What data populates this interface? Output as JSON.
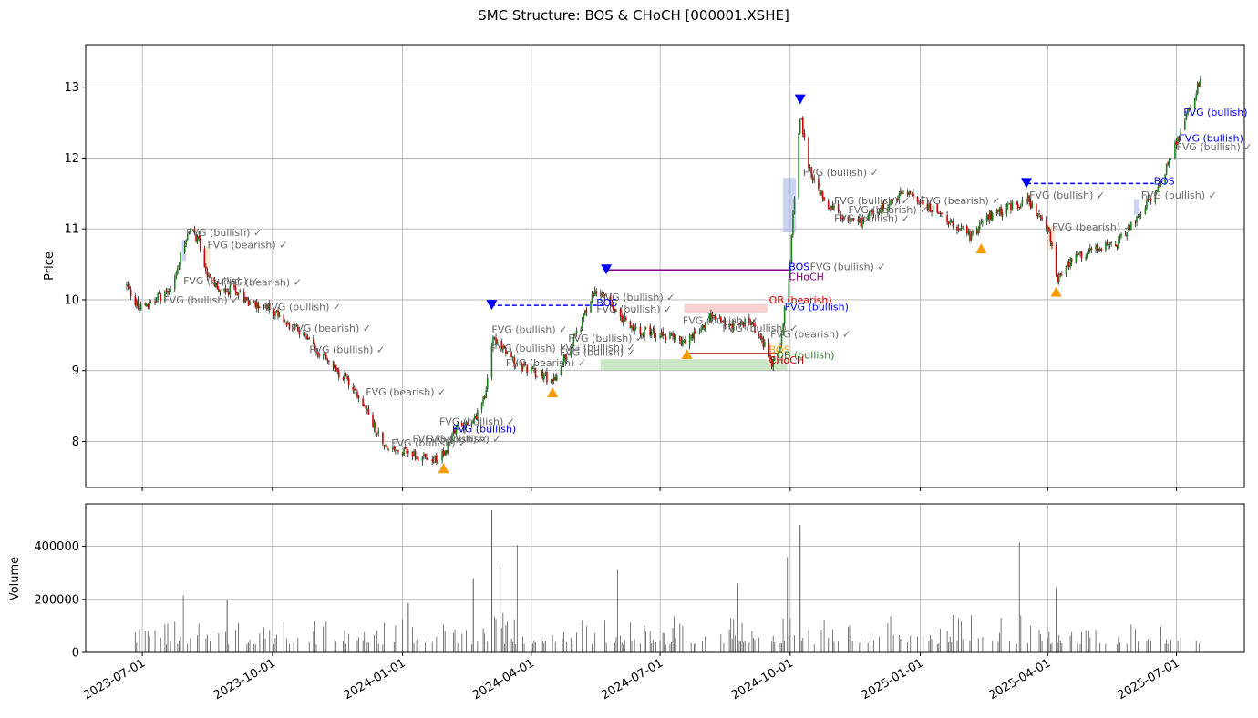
{
  "chart_data": {
    "type": "candlestick",
    "title": "SMC Structure: BOS & CHoCH [000001.XSHE]",
    "panels": [
      {
        "id": "price",
        "ylabel": "Price",
        "ylim": [
          7.35,
          13.6
        ],
        "yticks": [
          8,
          9,
          10,
          11,
          12,
          13
        ],
        "grid": true
      },
      {
        "id": "volume",
        "ylabel": "Volume",
        "ylim": [
          0,
          560000
        ],
        "yticks": [
          0,
          200000,
          400000
        ],
        "grid": true
      }
    ],
    "x_range": [
      "2023-05-22",
      "2025-08-18"
    ],
    "x_ticks": [
      "2023-07-01",
      "2023-10-01",
      "2024-01-01",
      "2024-04-01",
      "2024-07-01",
      "2024-10-01",
      "2025-01-01",
      "2025-04-01",
      "2025-07-01"
    ],
    "price_path": [
      [
        "2023-06-20",
        10.2
      ],
      [
        "2023-06-28",
        9.9
      ],
      [
        "2023-07-10",
        10.0
      ],
      [
        "2023-07-20",
        10.1
      ],
      [
        "2023-07-28",
        10.6
      ],
      [
        "2023-08-03",
        11.0
      ],
      [
        "2023-08-10",
        10.8
      ],
      [
        "2023-08-17",
        10.3
      ],
      [
        "2023-08-25",
        10.1
      ],
      [
        "2023-09-05",
        10.15
      ],
      [
        "2023-09-15",
        9.95
      ],
      [
        "2023-09-25",
        9.9
      ],
      [
        "2023-10-10",
        9.7
      ],
      [
        "2023-10-20",
        9.55
      ],
      [
        "2023-10-31",
        9.3
      ],
      [
        "2023-11-10",
        9.1
      ],
      [
        "2023-11-20",
        8.9
      ],
      [
        "2023-11-30",
        8.7
      ],
      [
        "2023-12-10",
        8.3
      ],
      [
        "2023-12-20",
        7.95
      ],
      [
        "2024-01-01",
        7.85
      ],
      [
        "2024-01-10",
        7.8
      ],
      [
        "2024-01-22",
        7.7
      ],
      [
        "2024-02-01",
        7.9
      ],
      [
        "2024-02-08",
        8.2
      ],
      [
        "2024-02-20",
        8.3
      ],
      [
        "2024-02-28",
        8.6
      ],
      [
        "2024-03-05",
        9.5
      ],
      [
        "2024-03-12",
        9.3
      ],
      [
        "2024-03-20",
        9.1
      ],
      [
        "2024-03-31",
        9.0
      ],
      [
        "2024-04-10",
        8.95
      ],
      [
        "2024-04-16",
        8.8
      ],
      [
        "2024-04-25",
        9.2
      ],
      [
        "2024-05-05",
        9.6
      ],
      [
        "2024-05-15",
        10.1
      ],
      [
        "2024-05-23",
        10.05
      ],
      [
        "2024-06-05",
        9.7
      ],
      [
        "2024-06-20",
        9.55
      ],
      [
        "2024-07-05",
        9.5
      ],
      [
        "2024-07-15",
        9.4
      ],
      [
        "2024-07-25",
        9.5
      ],
      [
        "2024-08-05",
        9.75
      ],
      [
        "2024-08-20",
        9.6
      ],
      [
        "2024-09-01",
        9.7
      ],
      [
        "2024-09-10",
        9.5
      ],
      [
        "2024-09-18",
        9.1
      ],
      [
        "2024-09-24",
        9.4
      ],
      [
        "2024-09-30",
        10.3
      ],
      [
        "2024-10-08",
        12.6
      ],
      [
        "2024-10-15",
        11.8
      ],
      [
        "2024-10-25",
        11.4
      ],
      [
        "2024-11-05",
        11.2
      ],
      [
        "2024-11-20",
        11.1
      ],
      [
        "2024-12-05",
        11.3
      ],
      [
        "2024-12-20",
        11.5
      ],
      [
        "2025-01-05",
        11.35
      ],
      [
        "2025-01-20",
        11.1
      ],
      [
        "2025-02-05",
        10.9
      ],
      [
        "2025-02-20",
        11.2
      ],
      [
        "2025-03-05",
        11.3
      ],
      [
        "2025-03-18",
        11.4
      ],
      [
        "2025-03-25",
        11.2
      ],
      [
        "2025-04-02",
        11.0
      ],
      [
        "2025-04-08",
        10.3
      ],
      [
        "2025-04-20",
        10.6
      ],
      [
        "2025-05-05",
        10.7
      ],
      [
        "2025-05-20",
        10.8
      ],
      [
        "2025-06-01",
        11.1
      ],
      [
        "2025-06-15",
        11.5
      ],
      [
        "2025-06-25",
        11.9
      ],
      [
        "2025-07-05",
        12.4
      ],
      [
        "2025-07-12",
        12.8
      ],
      [
        "2025-07-18",
        13.1
      ]
    ],
    "volume_spikes": [
      [
        "2023-07-30",
        215000
      ],
      [
        "2023-08-30",
        200000
      ],
      [
        "2024-01-05",
        185000
      ],
      [
        "2024-02-20",
        280000
      ],
      [
        "2024-03-04",
        535000
      ],
      [
        "2024-03-10",
        320000
      ],
      [
        "2024-03-22",
        405000
      ],
      [
        "2024-06-01",
        310000
      ],
      [
        "2024-08-25",
        260000
      ],
      [
        "2024-09-29",
        360000
      ],
      [
        "2024-10-08",
        480000
      ],
      [
        "2025-03-12",
        415000
      ],
      [
        "2025-04-07",
        245000
      ]
    ],
    "zones": [
      {
        "x0": "2023-07-29",
        "x1": "2023-08-01",
        "y0": 10.55,
        "y1": 10.85,
        "color": "#aab4e8"
      },
      {
        "x0": "2023-08-14",
        "x1": "2023-08-18",
        "y0": 10.45,
        "y1": 10.75,
        "color": "#f5d9b8"
      },
      {
        "x0": "2024-05-20",
        "x1": "2024-09-29",
        "y0": 9.0,
        "y1": 9.16,
        "color": "#a9d5a2"
      },
      {
        "x0": "2024-07-18",
        "x1": "2024-09-15",
        "y0": 9.82,
        "y1": 9.94,
        "color": "#f7b3b3"
      },
      {
        "x0": "2024-09-26",
        "x1": "2024-10-05",
        "y0": 10.95,
        "y1": 11.72,
        "color": "#aab4e8"
      },
      {
        "x0": "2025-04-01",
        "x1": "2025-04-06",
        "y0": 10.7,
        "y1": 11.05,
        "color": "#f5d9b8"
      },
      {
        "x0": "2025-06-01",
        "x1": "2025-06-05",
        "y0": 11.2,
        "y1": 11.42,
        "color": "#aab4e8"
      }
    ],
    "levels": [
      {
        "x0": "2024-03-03",
        "x1": "2024-05-24",
        "y": 9.92,
        "color": "#0000ff",
        "dashed": true
      },
      {
        "x0": "2024-05-24",
        "x1": "2024-09-30",
        "y": 10.42,
        "color": "#800080",
        "dashed": false
      },
      {
        "x0": "2024-07-20",
        "x1": "2024-09-22",
        "y": 9.24,
        "color": "#aa0000",
        "dashed": false
      },
      {
        "x0": "2025-03-17",
        "x1": "2025-06-15",
        "y": 11.64,
        "color": "#0000ff",
        "dashed": true
      }
    ],
    "swing_highs": [
      {
        "date": "2024-03-04",
        "price": 9.92
      },
      {
        "date": "2024-05-24",
        "price": 10.42
      },
      {
        "date": "2024-10-08",
        "price": 12.82
      },
      {
        "date": "2025-03-17",
        "price": 11.64
      }
    ],
    "swing_lows": [
      {
        "date": "2024-01-30",
        "price": 7.63
      },
      {
        "date": "2024-04-16",
        "price": 8.7
      },
      {
        "date": "2024-07-20",
        "price": 9.24
      },
      {
        "date": "2025-02-13",
        "price": 10.73
      },
      {
        "date": "2025-04-07",
        "price": 10.12
      }
    ],
    "annotations": [
      {
        "text": "FVG (bullish) ✓",
        "date": "2023-08-01",
        "y": 10.95,
        "color": "#666666"
      },
      {
        "text": "FVG (bearish) ✓",
        "date": "2023-08-16",
        "y": 10.78,
        "color": "#666666"
      },
      {
        "text": "FVG (bullish) ✓",
        "date": "2023-07-16",
        "y": 10.0,
        "color": "#666666"
      },
      {
        "text": "FVG (bullish) ✓",
        "date": "2023-07-30",
        "y": 10.27,
        "color": "#666666"
      },
      {
        "text": "FVG (bearish) ✓",
        "date": "2023-08-26",
        "y": 10.25,
        "color": "#666666"
      },
      {
        "text": "FVG (bullish) ✓",
        "date": "2023-09-26",
        "y": 9.9,
        "color": "#666666"
      },
      {
        "text": "FVG (bearish) ✓",
        "date": "2023-10-14",
        "y": 9.6,
        "color": "#666666"
      },
      {
        "text": "FVG (bullish) ✓",
        "date": "2023-10-27",
        "y": 9.3,
        "color": "#666666"
      },
      {
        "text": "FVG (bearish) ✓",
        "date": "2023-12-06",
        "y": 8.7,
        "color": "#666666"
      },
      {
        "text": "FVG (bullish) ✓",
        "date": "2023-12-24",
        "y": 7.98,
        "color": "#666666"
      },
      {
        "text": "FVG (bullish) ✓",
        "date": "2024-01-08",
        "y": 8.04,
        "color": "#666666"
      },
      {
        "text": "FVG (bullish) ✓",
        "date": "2024-01-17",
        "y": 8.04,
        "color": "#666666"
      },
      {
        "text": "FVG (bullish) ✓",
        "date": "2024-01-27",
        "y": 8.28,
        "color": "#666666"
      },
      {
        "text": "FVG (bullish)",
        "date": "2024-02-05",
        "y": 8.18,
        "color": "#0000ff"
      },
      {
        "text": "FVG (bullish) ✓",
        "date": "2024-03-04",
        "y": 9.58,
        "color": "#666666"
      },
      {
        "text": "FVG (bullish) ✓",
        "date": "2024-03-04",
        "y": 9.32,
        "color": "#666666"
      },
      {
        "text": "FVG (bearish) ✓",
        "date": "2024-03-14",
        "y": 9.11,
        "color": "#666666"
      },
      {
        "text": "FVG (bullish) ✓",
        "date": "2024-04-21",
        "y": 9.33,
        "color": "#666666"
      },
      {
        "text": "FVG (bullish) ✓",
        "date": "2024-04-27",
        "y": 9.46,
        "color": "#666666"
      },
      {
        "text": "FVG (bullish) ✓",
        "date": "2024-04-21",
        "y": 9.26,
        "color": "#666666"
      },
      {
        "text": "FVG (bullish) ✓",
        "date": "2024-05-17",
        "y": 9.87,
        "color": "#666666"
      },
      {
        "text": "FVG (bullish) ✓",
        "date": "2024-05-19",
        "y": 10.04,
        "color": "#666666"
      },
      {
        "text": "FVG (bullish) ✓",
        "date": "2024-07-17",
        "y": 9.71,
        "color": "#666666"
      },
      {
        "text": "FVG (bullish) ✓",
        "date": "2024-08-14",
        "y": 9.6,
        "color": "#666666"
      },
      {
        "text": "FVG (bearish) ✓",
        "date": "2024-09-17",
        "y": 9.52,
        "color": "#666666"
      },
      {
        "text": "BOS",
        "date": "2024-05-17",
        "y": 9.96,
        "color": "#0000ff"
      },
      {
        "text": "OB (bearish)",
        "date": "2024-09-16",
        "y": 10.0,
        "color": "#cc0000"
      },
      {
        "text": "FVG (bullish)",
        "date": "2024-09-27",
        "y": 9.9,
        "color": "#0000ff"
      },
      {
        "text": "BOS",
        "date": "2024-09-16",
        "y": 9.3,
        "color": "#ff9900"
      },
      {
        "text": "OB (bullish)",
        "date": "2024-09-21",
        "y": 9.22,
        "color": "#2e7d32"
      },
      {
        "text": "CHoCH",
        "date": "2024-09-16",
        "y": 9.15,
        "color": "#cc0000"
      },
      {
        "text": "BOS",
        "date": "2024-09-30",
        "y": 10.47,
        "color": "#0000ff"
      },
      {
        "text": "CHoCH",
        "date": "2024-09-30",
        "y": 10.33,
        "color": "#800080"
      },
      {
        "text": "FVG (bullish) ✓",
        "date": "2024-10-15",
        "y": 10.47,
        "color": "#666666"
      },
      {
        "text": "FVG (bullish) ✓",
        "date": "2024-10-10",
        "y": 11.8,
        "color": "#666666"
      },
      {
        "text": "FVG (bullish) ✓",
        "date": "2024-11-01",
        "y": 11.4,
        "color": "#666666"
      },
      {
        "text": "FVG (bearish) ✓",
        "date": "2024-11-11",
        "y": 11.27,
        "color": "#666666"
      },
      {
        "text": "FVG (bullish) ✓",
        "date": "2024-11-01",
        "y": 11.15,
        "color": "#666666"
      },
      {
        "text": "FVG (bearish) ✓",
        "date": "2025-01-01",
        "y": 11.4,
        "color": "#666666"
      },
      {
        "text": "FVG (bullish) ✓",
        "date": "2025-03-19",
        "y": 11.48,
        "color": "#666666"
      },
      {
        "text": "FVG (bearish) ✓",
        "date": "2025-04-04",
        "y": 11.03,
        "color": "#666666"
      },
      {
        "text": "BOS",
        "date": "2025-06-15",
        "y": 11.68,
        "color": "#0000ff"
      },
      {
        "text": "FVG (bullish) ✓",
        "date": "2025-06-06",
        "y": 11.48,
        "color": "#666666"
      },
      {
        "text": "FVG (bullish)",
        "date": "2025-07-06",
        "y": 12.65,
        "color": "#0000ff"
      },
      {
        "text": "FVG (bullish)",
        "date": "2025-07-03",
        "y": 12.28,
        "color": "#0000ff"
      },
      {
        "text": "FVG (bullish) ✓",
        "date": "2025-07-01",
        "y": 12.16,
        "color": "#666666"
      }
    ]
  }
}
